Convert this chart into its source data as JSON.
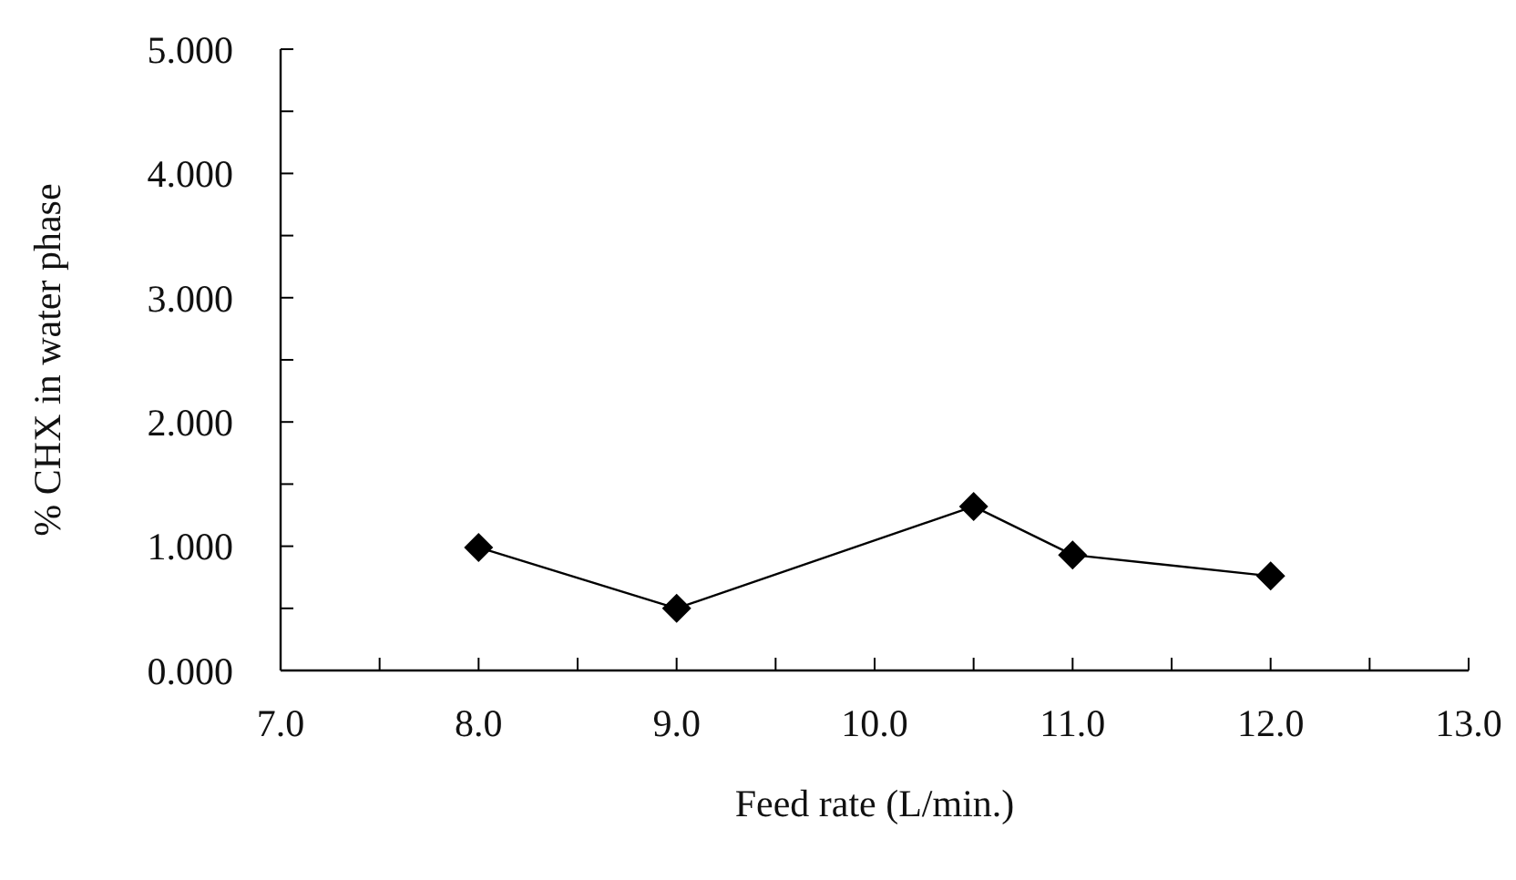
{
  "chart_data": {
    "type": "line",
    "xlabel": "Feed rate (L/min.)",
    "ylabel": "% CHX in water phase",
    "x": [
      8.0,
      9.0,
      10.5,
      11.0,
      12.0
    ],
    "series": [
      {
        "color": "#000000",
        "values": [
          0.99,
          0.5,
          1.32,
          0.93,
          0.76
        ]
      }
    ],
    "xlim": [
      7,
      13
    ],
    "xticks": [
      {
        "value": 7,
        "label": "7.0"
      },
      {
        "value": 7.5,
        "label": null
      },
      {
        "value": 8,
        "label": "8.0"
      },
      {
        "value": 8.5,
        "label": null
      },
      {
        "value": 9,
        "label": "9.0"
      },
      {
        "value": 9.5,
        "label": null
      },
      {
        "value": 10,
        "label": "10.0"
      },
      {
        "value": 10.5,
        "label": null
      },
      {
        "value": 11,
        "label": "11.0"
      },
      {
        "value": 11.5,
        "label": null
      },
      {
        "value": 12,
        "label": "12.0"
      },
      {
        "value": 12.5,
        "label": null
      },
      {
        "value": 13,
        "label": "13.0"
      }
    ],
    "ylim": [
      0,
      5
    ],
    "yticks": [
      {
        "value": 0,
        "label": "0.000"
      },
      {
        "value": 0.5,
        "label": null
      },
      {
        "value": 1,
        "label": "1.000"
      },
      {
        "value": 1.5,
        "label": null
      },
      {
        "value": 2,
        "label": "2.000"
      },
      {
        "value": 2.5,
        "label": null
      },
      {
        "value": 3,
        "label": "3.000"
      },
      {
        "value": 3.5,
        "label": null
      },
      {
        "value": 4,
        "label": "4.000"
      },
      {
        "value": 4.5,
        "label": null
      },
      {
        "value": 5,
        "label": "5.000"
      }
    ],
    "marker": "diamond",
    "line_style": "solid"
  }
}
